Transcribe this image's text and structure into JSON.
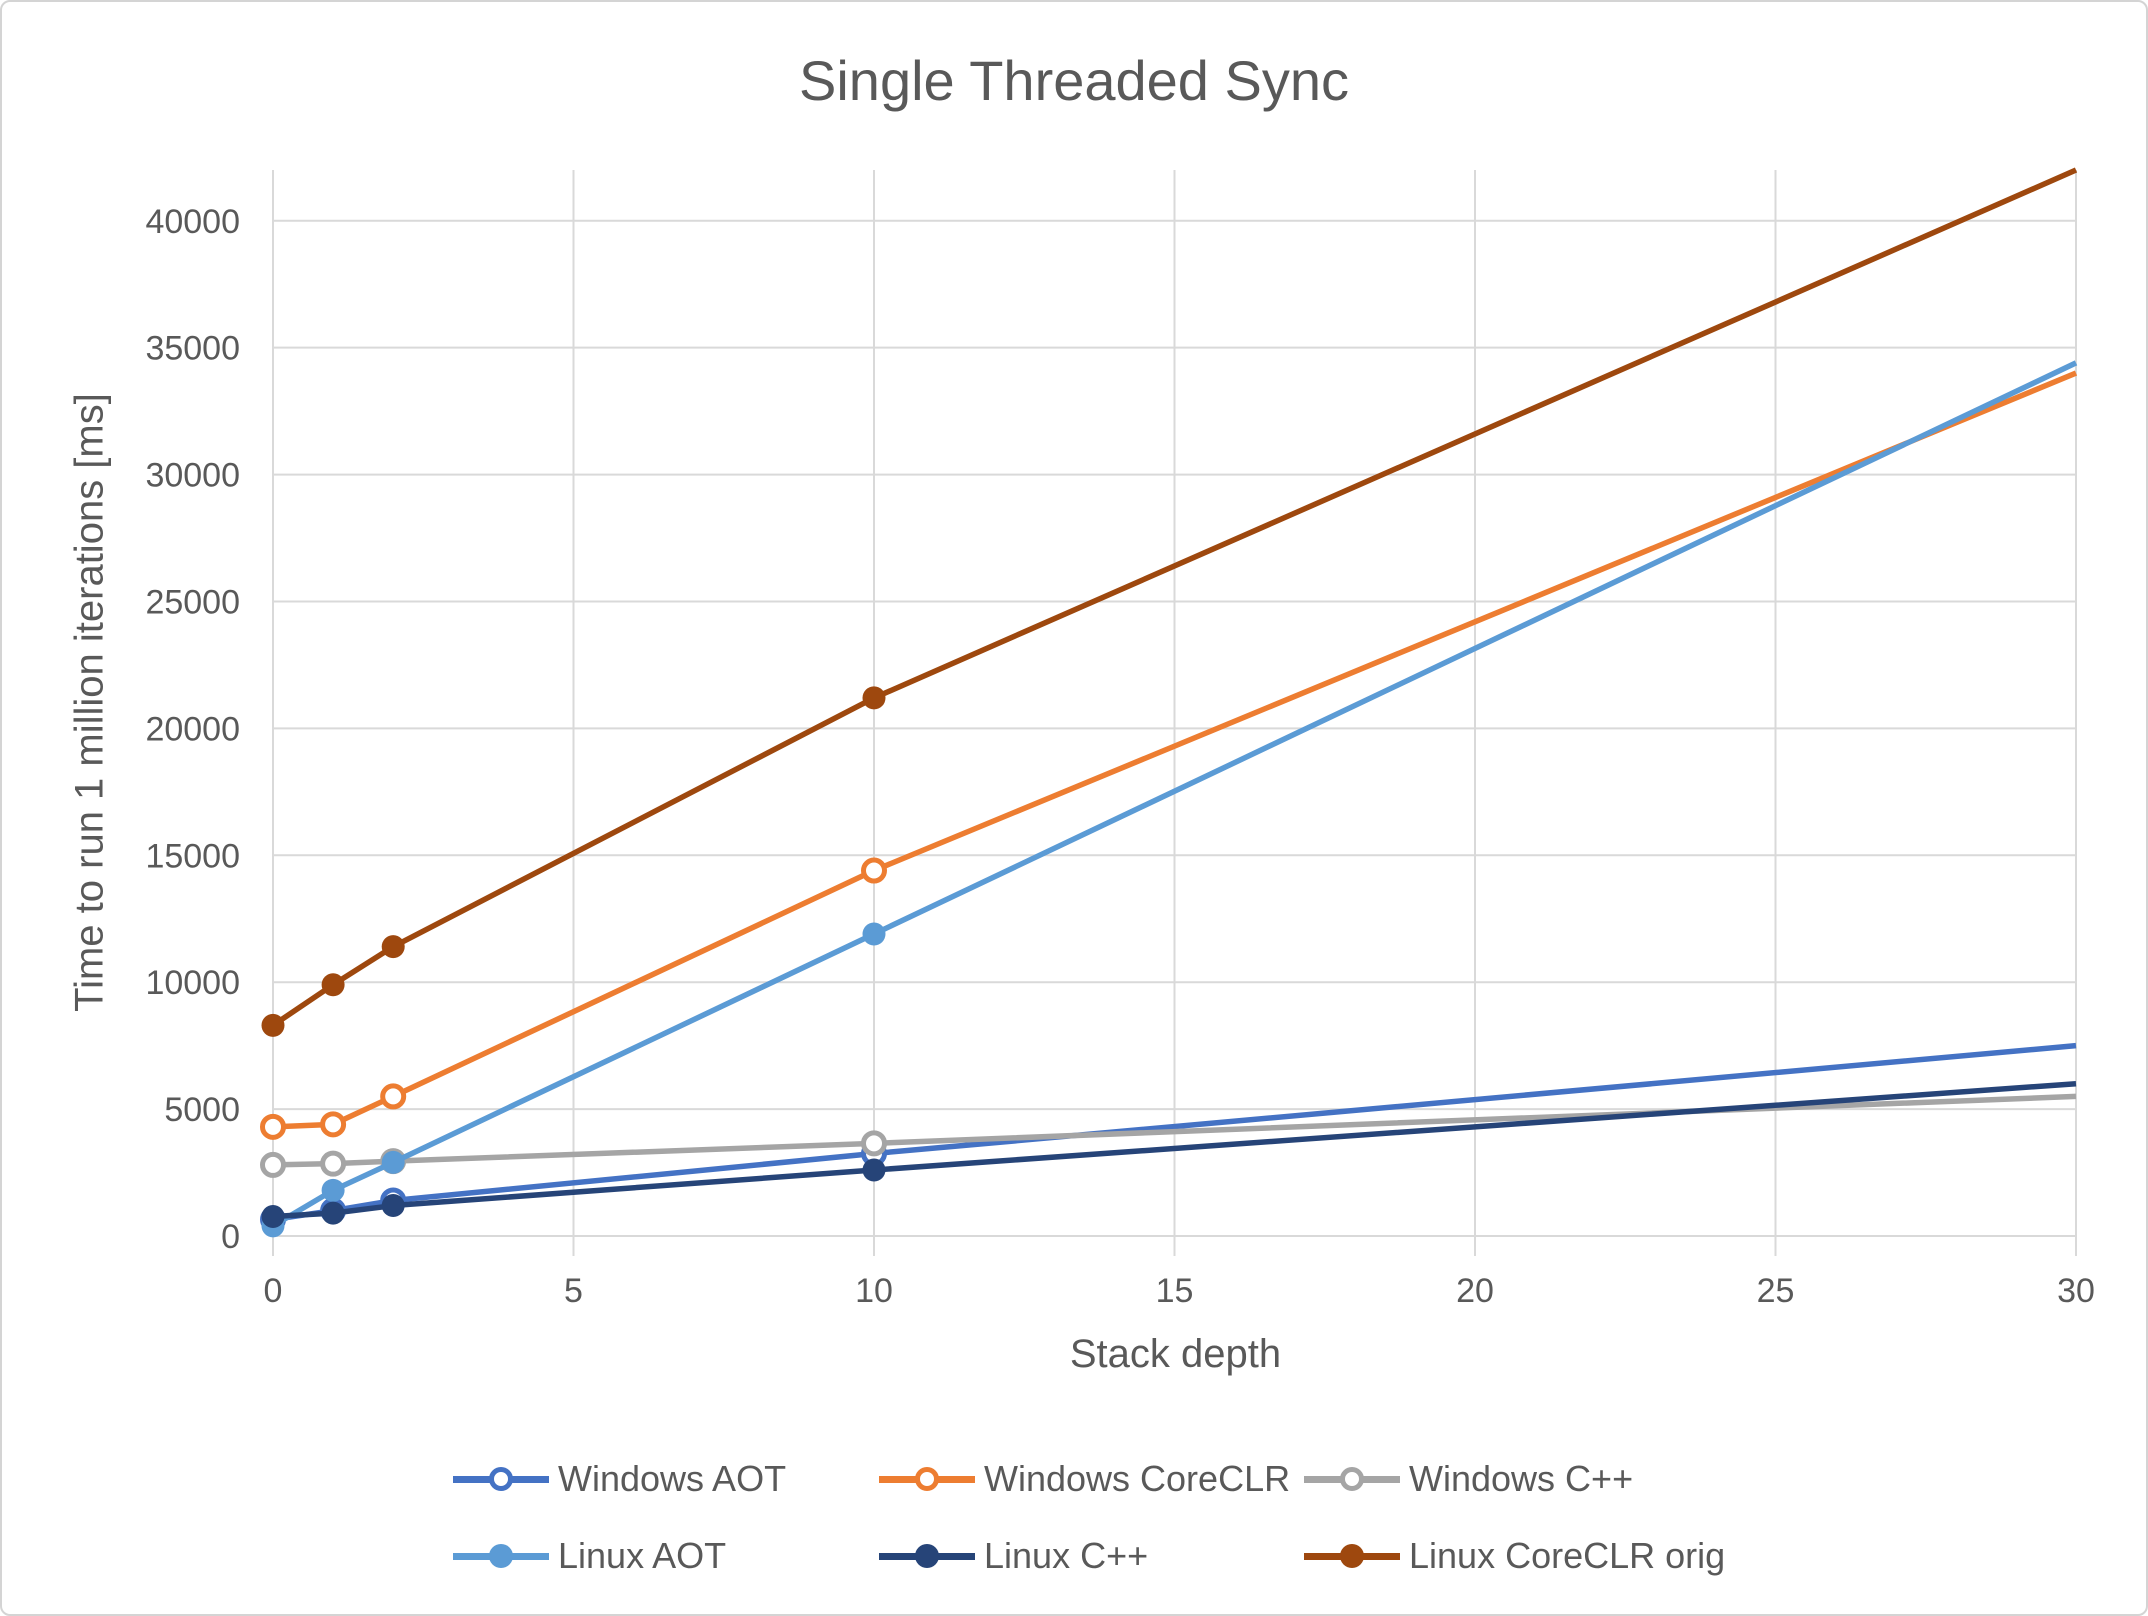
{
  "window": {
    "background": "#FFFFFF",
    "border_color": "#D4D4D4"
  },
  "chart_data": {
    "type": "line",
    "title": "Single Threaded Sync",
    "xlabel": "Stack depth",
    "ylabel": "Time to run 1 million iterations [ms]",
    "x": [
      0,
      1,
      2,
      10,
      30
    ],
    "series": [
      {
        "name": "Windows AOT",
        "color": "#4472C4",
        "marker": "open",
        "values": [
          650,
          1000,
          1400,
          3250,
          7500
        ]
      },
      {
        "name": "Windows CoreCLR",
        "color": "#ED7D31",
        "marker": "open",
        "values": [
          4300,
          4400,
          5500,
          14400,
          34000
        ]
      },
      {
        "name": "Windows C++",
        "color": "#A5A5A5",
        "marker": "open",
        "values": [
          2800,
          2850,
          2950,
          3650,
          5500
        ]
      },
      {
        "name": "Linux AOT",
        "color": "#5B9BD5",
        "marker": "filled",
        "values": [
          400,
          1800,
          2900,
          11900,
          34400
        ]
      },
      {
        "name": "Linux C++",
        "color": "#264478",
        "marker": "filled",
        "values": [
          770,
          900,
          1200,
          2600,
          6000
        ]
      },
      {
        "name": "Linux CoreCLR orig",
        "color": "#9E480E",
        "marker": "filled",
        "values": [
          8300,
          9900,
          11400,
          21200,
          42000
        ]
      }
    ],
    "marker_x": [
      0,
      1,
      2,
      10
    ],
    "x_ticks": [
      0,
      5,
      10,
      15,
      20,
      25,
      30
    ],
    "y_ticks": [
      0,
      5000,
      10000,
      15000,
      20000,
      25000,
      30000,
      35000,
      40000
    ],
    "xlim": [
      0,
      30
    ],
    "ylim": [
      0,
      42000
    ],
    "grid": true,
    "gridline_color": "#D9D9D9",
    "text_color": "#595959",
    "legend_position": "bottom"
  }
}
